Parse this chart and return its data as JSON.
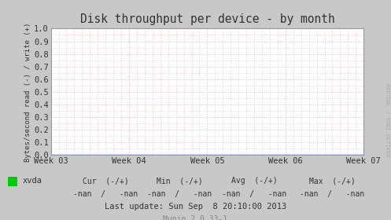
{
  "title": "Disk throughput per device - by month",
  "ylabel": "Bytes/second read (-) / write (+)",
  "ylim": [
    0.0,
    1.0
  ],
  "yticks": [
    0.0,
    0.1,
    0.2,
    0.3,
    0.4,
    0.5,
    0.6,
    0.7,
    0.8,
    0.9,
    1.0
  ],
  "xtick_labels": [
    "Week 03",
    "Week 04",
    "Week 05",
    "Week 06",
    "Week 07"
  ],
  "xtick_positions": [
    0.0,
    0.25,
    0.5,
    0.75,
    1.0
  ],
  "bg_color": "#c8c8c8",
  "plot_bg_color": "#ffffff",
  "grid_color": "#ffb0b0",
  "title_color": "#333333",
  "axis_color": "#333333",
  "legend_entry": "xvda",
  "legend_color": "#00cc00",
  "footer_text": "Last update: Sun Sep  8 20:10:00 2013",
  "munin_text": "Munin 2.0.33-1",
  "cur_label": "Cur  (-/+)",
  "min_label": "Min  (-/+)",
  "avg_label": "Avg  (-/+)",
  "max_label": "Max  (-/+)",
  "cur_value": "-nan  /   -nan",
  "min_value": "-nan  /   -nan",
  "avg_value": "-nan  /   -nan",
  "max_value": "-nan  /   -nan",
  "side_label": "RRDTOOL / TOBI OETIKER",
  "line_color": "#0044cc",
  "border_color": "#999999",
  "tick_color": "#333333"
}
